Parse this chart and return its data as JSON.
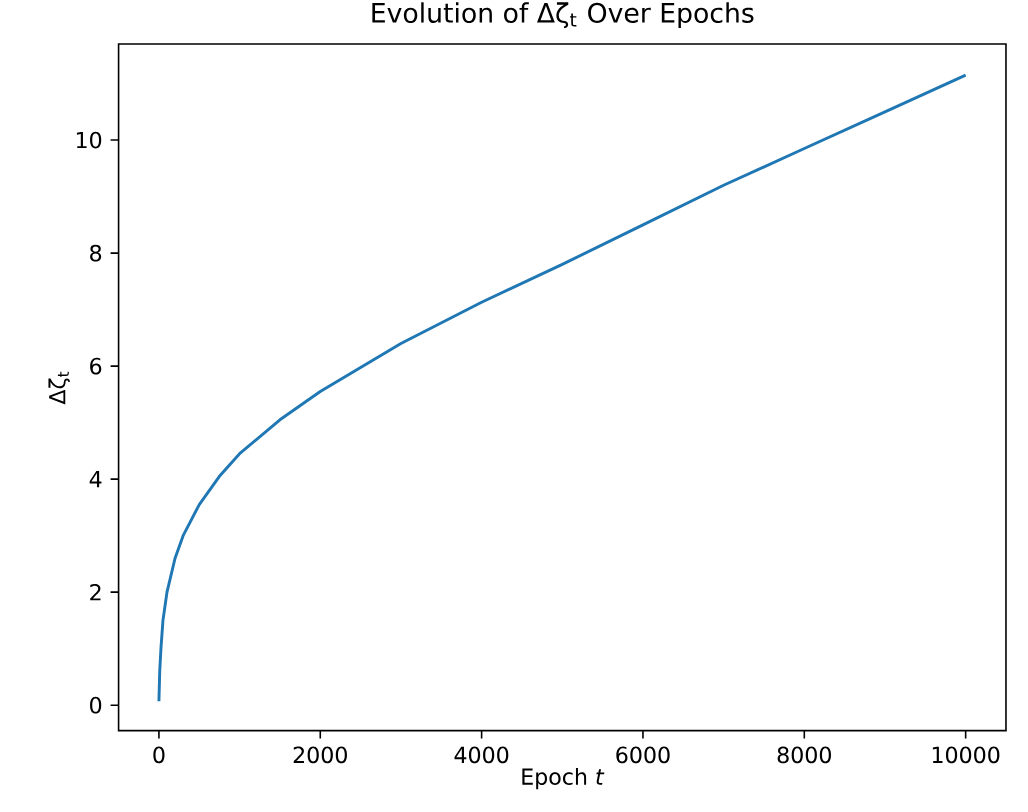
{
  "chart_data": {
    "type": "line",
    "title": "Evolution of Δζ$_{t}$ Over Epochs",
    "xlabel": "Epoch *t*",
    "ylabel": "Δζ$_{t}$",
    "xlim": [
      -500,
      10500
    ],
    "ylim": [
      -0.45,
      11.7
    ],
    "xticks": [
      0,
      2000,
      4000,
      6000,
      8000,
      10000
    ],
    "yticks": [
      0,
      2,
      4,
      6,
      8,
      10
    ],
    "grid": false,
    "series": [
      {
        "color": "#1f77b4",
        "x": [
          0,
          10,
          25,
          50,
          100,
          200,
          300,
          500,
          750,
          1000,
          1500,
          2000,
          3000,
          4000,
          5000,
          6000,
          7000,
          8000,
          9000,
          10000
        ],
        "values": [
          0.07,
          0.6,
          1.0,
          1.5,
          2.0,
          2.6,
          3.0,
          3.55,
          4.05,
          4.45,
          5.05,
          5.55,
          6.4,
          7.13,
          7.8,
          8.5,
          9.2,
          9.85,
          10.5,
          11.15
        ]
      }
    ]
  }
}
